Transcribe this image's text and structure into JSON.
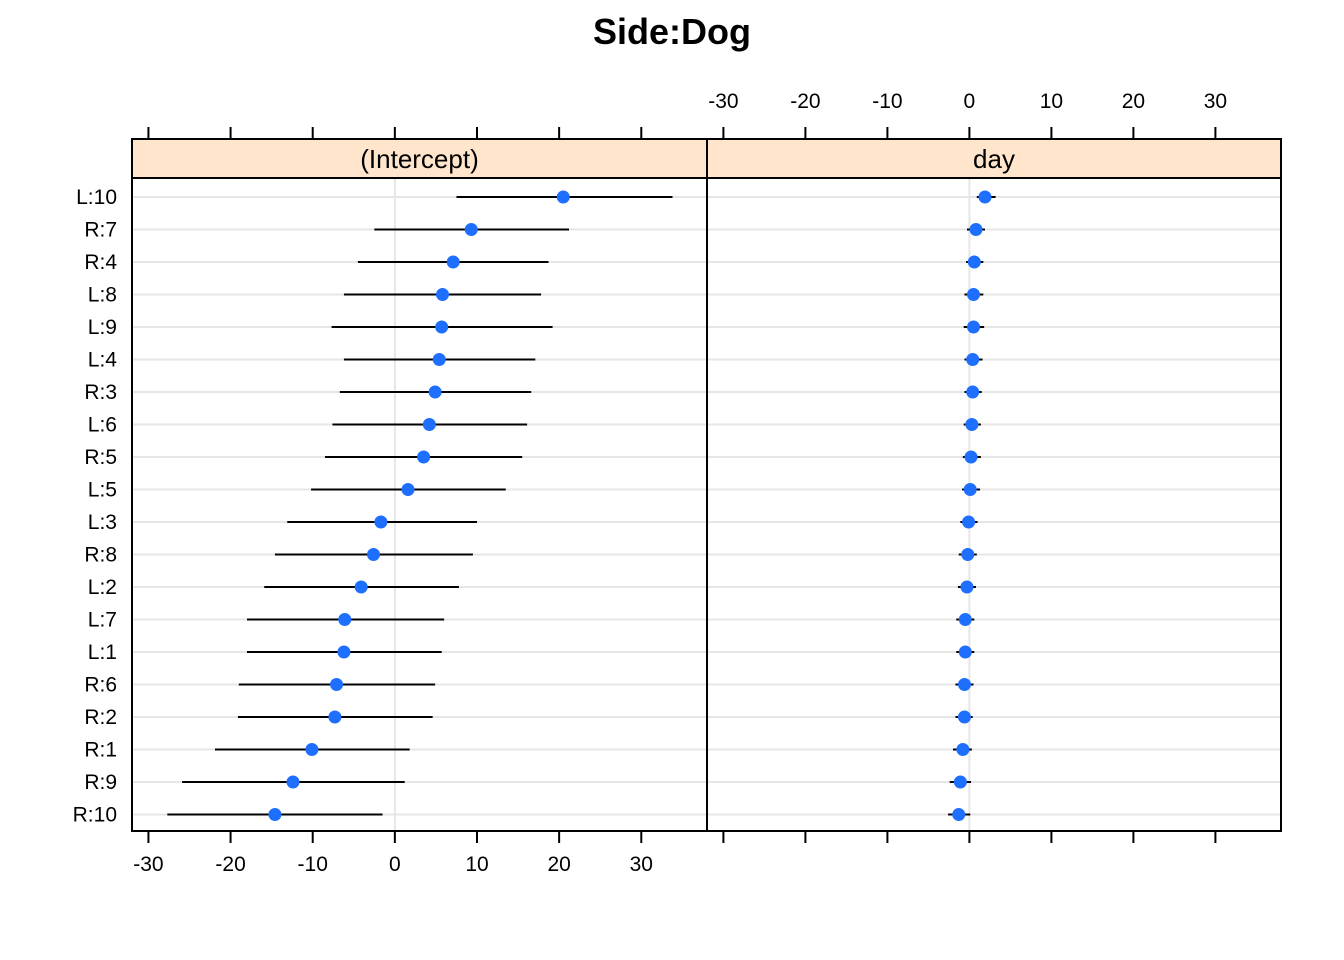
{
  "chart_data": {
    "type": "dotplot",
    "title": "Side:Dog",
    "rows": [
      "L:10",
      "R:7",
      "R:4",
      "L:8",
      "L:9",
      "L:4",
      "R:3",
      "L:6",
      "R:5",
      "L:5",
      "L:3",
      "R:8",
      "L:2",
      "L:7",
      "L:1",
      "R:6",
      "R:2",
      "R:1",
      "R:9",
      "R:10"
    ],
    "panels": [
      {
        "name": "(Intercept)",
        "axis_side": "bottom",
        "xlim": [
          -32,
          38
        ],
        "ticks": [
          -30,
          -20,
          -10,
          0,
          10,
          20,
          30
        ],
        "reference_line": 0,
        "points": [
          {
            "estimate": 20.5,
            "lower": 7.5,
            "upper": 33.8
          },
          {
            "estimate": 9.3,
            "lower": -2.5,
            "upper": 21.2
          },
          {
            "estimate": 7.1,
            "lower": -4.5,
            "upper": 18.7
          },
          {
            "estimate": 5.8,
            "lower": -6.2,
            "upper": 17.8
          },
          {
            "estimate": 5.7,
            "lower": -7.7,
            "upper": 19.2
          },
          {
            "estimate": 5.4,
            "lower": -6.2,
            "upper": 17.1
          },
          {
            "estimate": 4.9,
            "lower": -6.7,
            "upper": 16.6
          },
          {
            "estimate": 4.2,
            "lower": -7.6,
            "upper": 16.1
          },
          {
            "estimate": 3.5,
            "lower": -8.5,
            "upper": 15.5
          },
          {
            "estimate": 1.6,
            "lower": -10.2,
            "upper": 13.5
          },
          {
            "estimate": -1.7,
            "lower": -13.1,
            "upper": 10.0
          },
          {
            "estimate": -2.6,
            "lower": -14.6,
            "upper": 9.5
          },
          {
            "estimate": -4.1,
            "lower": -15.9,
            "upper": 7.8
          },
          {
            "estimate": -6.1,
            "lower": -18.0,
            "upper": 6.0
          },
          {
            "estimate": -6.2,
            "lower": -18.0,
            "upper": 5.7
          },
          {
            "estimate": -7.1,
            "lower": -19.0,
            "upper": 4.9
          },
          {
            "estimate": -7.3,
            "lower": -19.1,
            "upper": 4.6
          },
          {
            "estimate": -10.1,
            "lower": -21.9,
            "upper": 1.8
          },
          {
            "estimate": -12.4,
            "lower": -25.9,
            "upper": 1.2
          },
          {
            "estimate": -14.6,
            "lower": -27.7,
            "upper": -1.5
          }
        ]
      },
      {
        "name": "day",
        "axis_side": "top",
        "xlim": [
          -32,
          38
        ],
        "ticks": [
          -30,
          -20,
          -10,
          0,
          10,
          20,
          30
        ],
        "reference_line": 0,
        "points": [
          {
            "estimate": 1.9,
            "lower": 0.9,
            "upper": 3.2
          },
          {
            "estimate": 0.8,
            "lower": -0.3,
            "upper": 1.9
          },
          {
            "estimate": 0.6,
            "lower": -0.4,
            "upper": 1.7
          },
          {
            "estimate": 0.5,
            "lower": -0.6,
            "upper": 1.7
          },
          {
            "estimate": 0.5,
            "lower": -0.7,
            "upper": 1.8
          },
          {
            "estimate": 0.4,
            "lower": -0.6,
            "upper": 1.6
          },
          {
            "estimate": 0.4,
            "lower": -0.6,
            "upper": 1.5
          },
          {
            "estimate": 0.3,
            "lower": -0.7,
            "upper": 1.4
          },
          {
            "estimate": 0.2,
            "lower": -0.8,
            "upper": 1.4
          },
          {
            "estimate": 0.1,
            "lower": -0.9,
            "upper": 1.3
          },
          {
            "estimate": -0.1,
            "lower": -1.1,
            "upper": 1.0
          },
          {
            "estimate": -0.2,
            "lower": -1.3,
            "upper": 0.9
          },
          {
            "estimate": -0.3,
            "lower": -1.4,
            "upper": 0.8
          },
          {
            "estimate": -0.5,
            "lower": -1.6,
            "upper": 0.6
          },
          {
            "estimate": -0.5,
            "lower": -1.6,
            "upper": 0.6
          },
          {
            "estimate": -0.6,
            "lower": -1.7,
            "upper": 0.5
          },
          {
            "estimate": -0.6,
            "lower": -1.7,
            "upper": 0.4
          },
          {
            "estimate": -0.8,
            "lower": -2.0,
            "upper": 0.3
          },
          {
            "estimate": -1.1,
            "lower": -2.4,
            "upper": 0.2
          },
          {
            "estimate": -1.3,
            "lower": -2.6,
            "upper": 0.1
          }
        ]
      }
    ],
    "colors": {
      "point": "#1f6fff",
      "interval": "#000000",
      "strip": "#ffe5cc",
      "gridline": "#e6e6e6",
      "border": "#000000"
    }
  }
}
